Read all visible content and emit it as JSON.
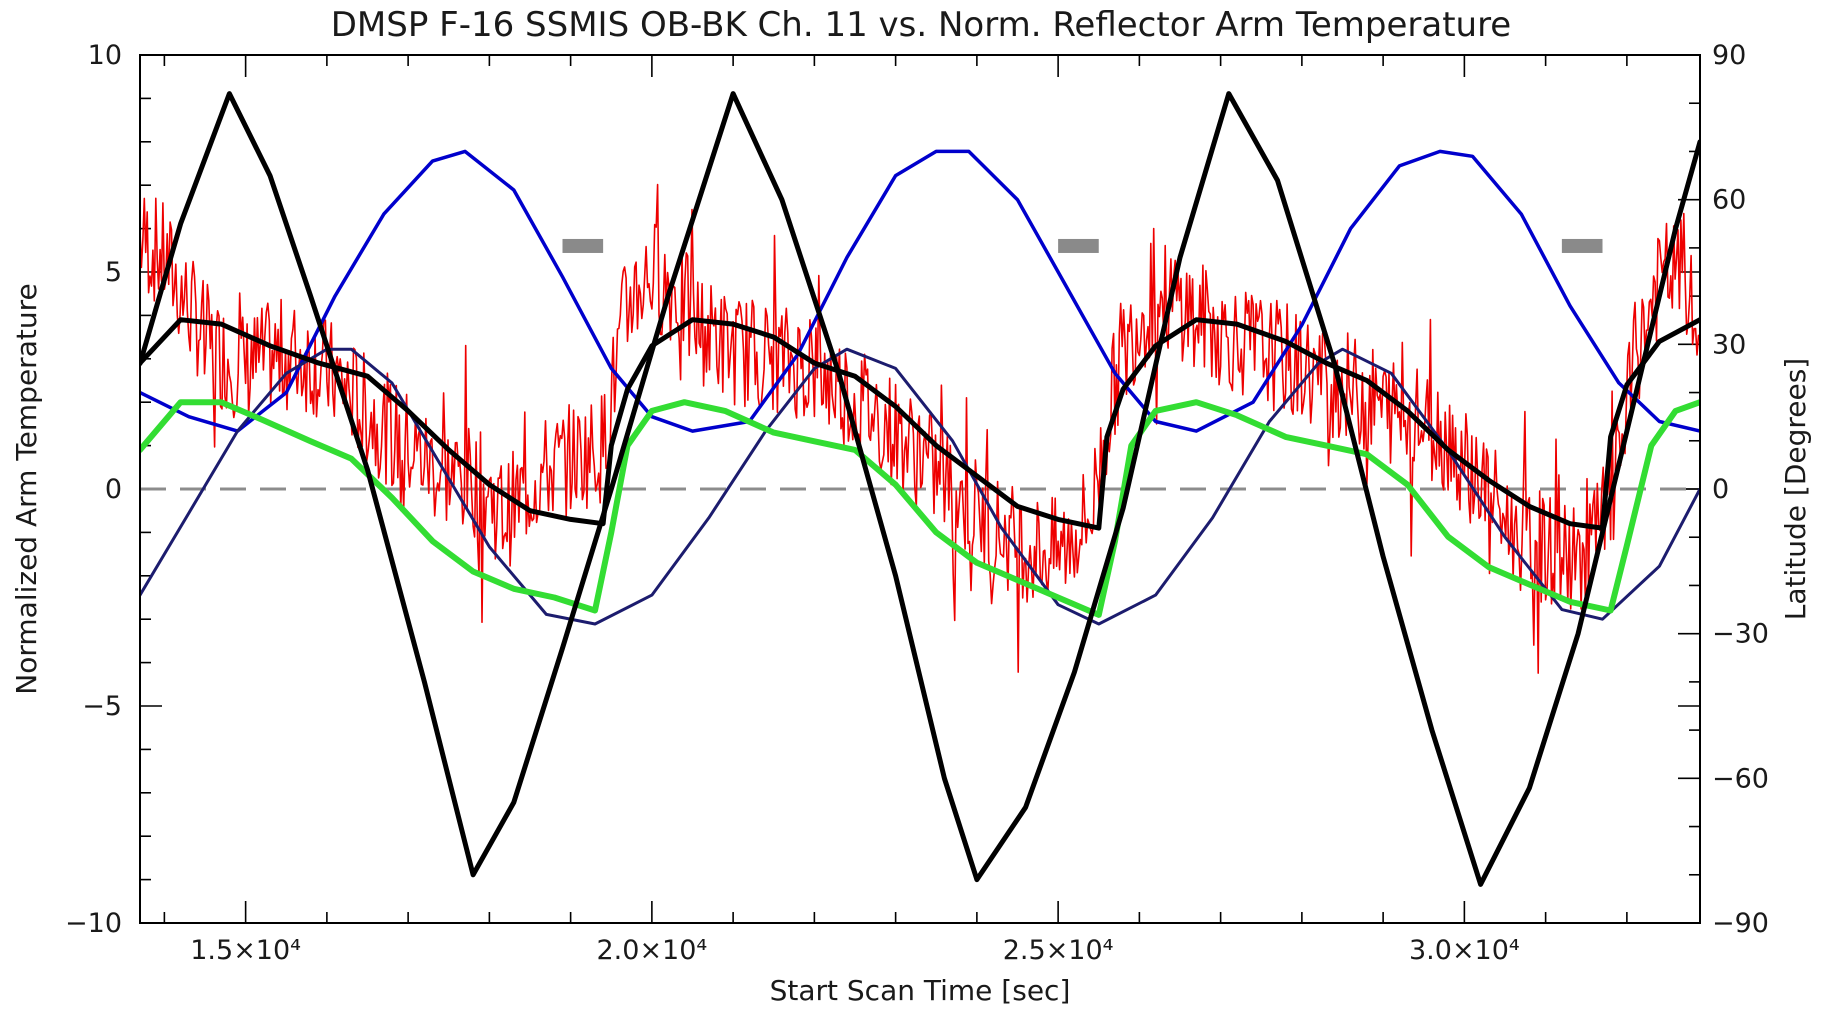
{
  "chart_data": {
    "type": "line",
    "title": "DMSP F-16 SSMIS OB-BK  Ch. 11 vs. Norm. Reflector Arm Temperature",
    "xlabel": "Start Scan Time [sec]",
    "ylabel": "Normalized Arm Temperature",
    "y2label": "Latitude [Degrees]",
    "xlim": [
      13700,
      32900
    ],
    "ylim": [
      -10,
      10
    ],
    "y2lim": [
      -90,
      90
    ],
    "x_ticks": [
      {
        "value": 15000,
        "label": "1.5×10⁴"
      },
      {
        "value": 20000,
        "label": "2.0×10⁴"
      },
      {
        "value": 25000,
        "label": "2.5×10⁴"
      },
      {
        "value": 30000,
        "label": "3.0×10⁴"
      }
    ],
    "y_ticks": [
      {
        "value": 10,
        "label": "10"
      },
      {
        "value": 5,
        "label": "5"
      },
      {
        "value": 0,
        "label": "0"
      },
      {
        "value": -5,
        "label": "-5"
      },
      {
        "value": -10,
        "label": "-10"
      }
    ],
    "y2_ticks": [
      {
        "value": 90,
        "label": "90"
      },
      {
        "value": 60,
        "label": "60"
      },
      {
        "value": 30,
        "label": "30"
      },
      {
        "value": 0,
        "label": "0"
      },
      {
        "value": -30,
        "label": "-30"
      },
      {
        "value": -60,
        "label": "-60"
      },
      {
        "value": -90,
        "label": "-90"
      }
    ],
    "grid": false,
    "zero_line": {
      "y": 0,
      "style": "dashed",
      "color": "#8c8c8c"
    },
    "gray_markers": [
      {
        "x_start": 18900,
        "x_end": 19400,
        "y": 5.6
      },
      {
        "x_start": 25000,
        "x_end": 25500,
        "y": 5.6
      },
      {
        "x_start": 31200,
        "x_end": 31700,
        "y": 5.6
      }
    ],
    "series": [
      {
        "color": "#0000cc",
        "axis": "y2",
        "x": [
          13700,
          14300,
          14900,
          15500,
          16100,
          16700,
          17300,
          17700,
          18300,
          18900,
          19500,
          20000,
          20500,
          21200,
          21800,
          22400,
          23000,
          23500,
          23900,
          24500,
          25100,
          25700,
          26200,
          26700,
          27400,
          28000,
          28600,
          29200,
          29700,
          30100,
          30700,
          31300,
          31900,
          32400,
          32900
        ],
        "y": [
          20,
          15,
          12,
          20,
          40,
          57,
          68,
          70,
          62,
          44,
          25,
          15,
          12,
          14,
          28,
          48,
          65,
          70,
          70,
          60,
          42,
          24,
          14,
          12,
          18,
          34,
          54,
          67,
          70,
          69,
          57,
          38,
          22,
          14,
          12
        ]
      },
      {
        "color": "#1c1c6e",
        "axis": "y2",
        "x": [
          13700,
          14300,
          14900,
          15500,
          16000,
          16300,
          16800,
          17400,
          18000,
          18700,
          19300,
          20000,
          20700,
          21400,
          22000,
          22400,
          23000,
          23700,
          24300,
          25000,
          25500,
          26200,
          26900,
          27600,
          28200,
          28500,
          29100,
          29800,
          30500,
          31200,
          31700,
          32400,
          32900
        ],
        "y": [
          -22,
          -5,
          12,
          24,
          29,
          29,
          22,
          5,
          -12,
          -26,
          -28,
          -22,
          -6,
          12,
          25,
          29,
          25,
          10,
          -8,
          -24,
          -28,
          -22,
          -6,
          14,
          26,
          29,
          24,
          8,
          -10,
          -25,
          -27,
          -16,
          0
        ]
      },
      {
        "color": "#000000",
        "axis": "y2",
        "x": [
          13700,
          14200,
          14800,
          15300,
          15800,
          16500,
          17200,
          17800,
          18300,
          18900,
          19500,
          20200,
          21000,
          21600,
          22300,
          23000,
          23600,
          24000,
          24600,
          25200,
          25800,
          26500,
          27100,
          27700,
          28400,
          29000,
          29600,
          30200,
          30800,
          31400,
          32000,
          32600,
          32900
        ],
        "y": [
          26,
          55,
          82,
          65,
          40,
          4,
          -40,
          -80,
          -65,
          -33,
          0,
          40,
          82,
          60,
          24,
          -18,
          -60,
          -81,
          -66,
          -38,
          -4,
          48,
          82,
          64,
          26,
          -14,
          -50,
          -82,
          -62,
          -30,
          12,
          54,
          72
        ]
      },
      {
        "color": "#000000",
        "axis": "y",
        "x": [
          13700,
          14200,
          14700,
          15300,
          15900,
          16500,
          17000,
          17500,
          18000,
          18500,
          19000,
          19400,
          19500,
          19700,
          20000,
          20500,
          21000,
          21500,
          22000,
          22500,
          23000,
          23500,
          24000,
          24500,
          25000,
          25500,
          25600,
          25800,
          26200,
          26700,
          27200,
          27800,
          28300,
          28800,
          29300,
          29800,
          30300,
          30800,
          31300,
          31700,
          31800,
          32000,
          32400,
          32900
        ],
        "y": [
          2.9,
          3.9,
          3.8,
          3.3,
          2.9,
          2.6,
          1.8,
          0.9,
          0.1,
          -0.5,
          -0.7,
          -0.8,
          1.0,
          2.3,
          3.3,
          3.9,
          3.8,
          3.5,
          2.9,
          2.6,
          1.9,
          1.0,
          0.3,
          -0.4,
          -0.7,
          -0.9,
          1.2,
          2.3,
          3.3,
          3.9,
          3.8,
          3.4,
          2.9,
          2.5,
          1.8,
          0.9,
          0.2,
          -0.4,
          -0.8,
          -0.9,
          1.2,
          2.4,
          3.4,
          3.9
        ]
      },
      {
        "color": "#33dd33",
        "axis": "y",
        "x": [
          13700,
          14200,
          14700,
          15200,
          15800,
          16300,
          16800,
          17300,
          17800,
          18300,
          18800,
          19300,
          19500,
          19700,
          20000,
          20400,
          20900,
          21500,
          22000,
          22500,
          23000,
          23500,
          24000,
          24500,
          25000,
          25500,
          25700,
          25900,
          26200,
          26700,
          27200,
          27800,
          28300,
          28800,
          29300,
          29800,
          30300,
          30800,
          31300,
          31800,
          32000,
          32300,
          32600,
          32900
        ],
        "y": [
          0.9,
          2.0,
          2.0,
          1.6,
          1.1,
          0.7,
          -0.2,
          -1.2,
          -1.9,
          -2.3,
          -2.5,
          -2.8,
          -1.0,
          1.0,
          1.8,
          2.0,
          1.8,
          1.3,
          1.1,
          0.9,
          0.1,
          -1.0,
          -1.7,
          -2.1,
          -2.5,
          -2.9,
          -1.2,
          1.0,
          1.8,
          2.0,
          1.7,
          1.2,
          1.0,
          0.8,
          0.1,
          -1.1,
          -1.8,
          -2.2,
          -2.6,
          -2.8,
          -1.3,
          1.0,
          1.8,
          2.0
        ]
      },
      {
        "color": "#ee0000",
        "axis": "y",
        "x": [
          13700,
          14000,
          14300,
          14600,
          15000,
          15400,
          15800,
          16200,
          16600,
          17000,
          17400,
          17800,
          18200,
          18600,
          19000,
          19400,
          19700,
          20000,
          20300,
          20600,
          21000,
          21400,
          21800,
          22200,
          22600,
          23000,
          23400,
          23800,
          24200,
          24600,
          25000,
          25400,
          25700,
          26000,
          26300,
          26600,
          27000,
          27400,
          27800,
          28200,
          28600,
          29000,
          29400,
          29800,
          30200,
          30600,
          31000,
          31400,
          31800,
          32100,
          32400,
          32700,
          32900
        ],
        "y": [
          5.8,
          5.3,
          4.2,
          3.2,
          2.8,
          3.1,
          3.0,
          2.4,
          1.6,
          1.0,
          0.4,
          0.2,
          -0.6,
          0.3,
          0.7,
          1.0,
          4.4,
          5.0,
          4.5,
          3.7,
          3.2,
          3.1,
          2.9,
          2.5,
          2.0,
          1.3,
          0.6,
          -0.2,
          -0.9,
          -1.3,
          -1.5,
          -0.6,
          2.5,
          4.0,
          4.4,
          4.2,
          3.6,
          3.3,
          3.0,
          2.6,
          2.3,
          1.9,
          1.6,
          1.2,
          0.2,
          -1.0,
          -1.4,
          -1.7,
          -0.4,
          3.0,
          4.8,
          5.1,
          3.0
        ]
      }
    ]
  }
}
